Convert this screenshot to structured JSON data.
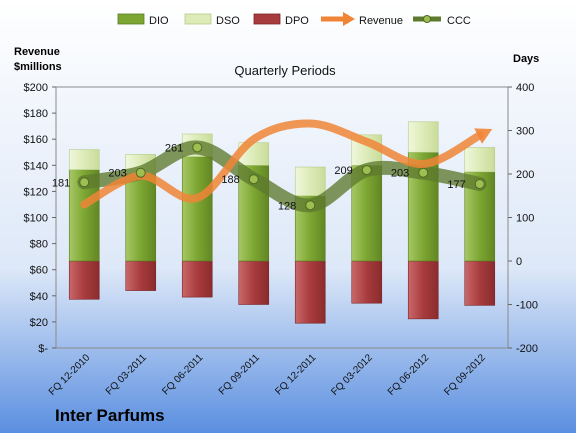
{
  "chart_data": {
    "type": "bar",
    "title": "Quarterly Periods",
    "company": "Inter Parfums",
    "left_axis_label_line1": "Revenue",
    "left_axis_label_line2": "$millions",
    "right_axis_label": "Days",
    "categories": [
      "FQ 12-2010",
      "FQ 03-2011",
      "FQ 06-2011",
      "FQ 09-2011",
      "FQ 12-2011",
      "FQ 03-2012",
      "FQ 06-2012",
      "FQ 09-2012"
    ],
    "left_ticks": [
      "$-",
      "$20",
      "$40",
      "$60",
      "$80",
      "$100",
      "$120",
      "$140",
      "$160",
      "$180",
      "$200"
    ],
    "right_ticks": [
      "-200",
      "-100",
      "0",
      "100",
      "200",
      "300",
      "400"
    ],
    "ylim_left": [
      0,
      200
    ],
    "ylim_right": [
      -200,
      400
    ],
    "legend": [
      "DIO",
      "DSO",
      "DPO",
      "Revenue",
      "CCC"
    ],
    "series": [
      {
        "name": "DIO",
        "axis": "right",
        "values": [
          210,
          200,
          240,
          220,
          150,
          220,
          250,
          205
        ]
      },
      {
        "name": "DSO",
        "axis": "right",
        "values": [
          46,
          45,
          52,
          52,
          66,
          70,
          70,
          56
        ]
      },
      {
        "name": "DPO",
        "axis": "right",
        "values": [
          -88,
          -68,
          -83,
          -100,
          -143,
          -97,
          -133,
          -102
        ]
      },
      {
        "name": "Revenue",
        "axis": "left",
        "values": [
          110,
          132,
          115,
          160,
          172,
          158,
          141,
          163
        ]
      },
      {
        "name": "CCC",
        "axis": "right",
        "values": [
          181,
          203,
          261,
          188,
          128,
          209,
          203,
          177
        ]
      }
    ],
    "ccc_labels": [
      "181",
      "203",
      "261",
      "188",
      "128",
      "209",
      "203",
      "177"
    ],
    "colors": {
      "dio": "#7ca632",
      "dso": "#e0eec0",
      "dpo": "#a83b3d",
      "revenue": "#f08536",
      "ccc": "#5d7a2e",
      "bg_top": "#ffffff",
      "bg_bottom": "#5b8fe0"
    }
  }
}
